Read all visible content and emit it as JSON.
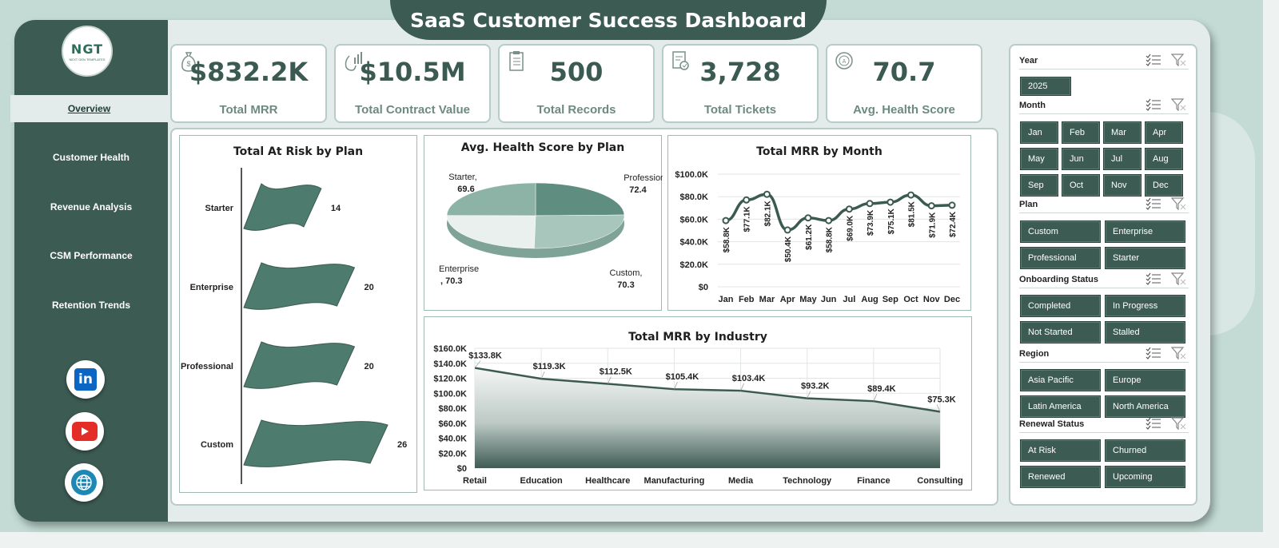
{
  "title": "SaaS Customer Success Dashboard",
  "logo": {
    "text": "NGT",
    "subtitle": "NEXT GEN TEMPLATES"
  },
  "nav": [
    {
      "label": "Overview",
      "active": true
    },
    {
      "label": "Customer Health"
    },
    {
      "label": "Revenue Analysis"
    },
    {
      "label": "CSM Performance"
    },
    {
      "label": "Retention Trends"
    }
  ],
  "social": [
    {
      "name": "linkedin-icon",
      "color": "#0a66c2"
    },
    {
      "name": "youtube-icon",
      "color": "#e52d27"
    },
    {
      "name": "website-globe-icon",
      "color": "#1e88b5"
    }
  ],
  "kpis": [
    {
      "value": "$832.2K",
      "label": "Total MRR",
      "icon": "money-bag-icon"
    },
    {
      "value": "$10.5M",
      "label": "Total Contract Value",
      "icon": "money-chart-icon"
    },
    {
      "value": "500",
      "label": "Total Records",
      "icon": "clipboard-icon"
    },
    {
      "value": "3,728",
      "label": "Total Tickets",
      "icon": "ticket-doc-icon"
    },
    {
      "value": "70.7",
      "label": "Avg. Health Score",
      "icon": "health-score-icon"
    }
  ],
  "colors": {
    "primary": "#3c5b52",
    "accent_light": "#c3dbd4",
    "kpi_text": "#3b5a51",
    "line": "#3b5a51"
  },
  "chart_data": [
    {
      "type": "bar",
      "title": "Total At Risk by Plan",
      "categories": [
        "Starter",
        "Enterprise",
        "Professional",
        "Custom"
      ],
      "values": [
        14,
        20,
        20,
        26
      ]
    },
    {
      "type": "pie",
      "title": "Avg. Health Score by Plan",
      "labels": [
        "Starter",
        "Professional",
        "Custom",
        "Enterprise"
      ],
      "values": [
        69.6,
        72.4,
        70.3,
        70.3
      ],
      "data_labels": [
        {
          "name": "Starter,",
          "value": "69.6"
        },
        {
          "name": "Professional,",
          "value": "72.4"
        },
        {
          "name": "Custom,",
          "value": "70.3"
        },
        {
          "name": "Enterprise",
          "value": ", 70.3"
        }
      ]
    },
    {
      "type": "line",
      "title": "Total MRR by Month",
      "categories": [
        "Jan",
        "Feb",
        "Mar",
        "Apr",
        "May",
        "Jun",
        "Jul",
        "Aug",
        "Sep",
        "Oct",
        "Nov",
        "Dec"
      ],
      "values": [
        58.8,
        77.1,
        82.1,
        50.4,
        61.2,
        58.8,
        69.0,
        73.9,
        75.1,
        81.5,
        71.9,
        72.4
      ],
      "data_labels": [
        "$58.8K",
        "$77.1K",
        "$82.1K",
        "$50.4K",
        "$61.2K",
        "$58.8K",
        "$69.0K",
        "$73.9K",
        "$75.1K",
        "$81.5K",
        "$71.9K",
        "$72.4K"
      ],
      "y_ticks": [
        "$0",
        "$20.0K",
        "$40.0K",
        "$60.0K",
        "$80.0K",
        "$100.0K"
      ],
      "ylim": [
        0,
        100
      ]
    },
    {
      "type": "area",
      "title": "Total MRR by Industry",
      "categories": [
        "Retail",
        "Education",
        "Healthcare",
        "Manufacturing",
        "Media",
        "Technology",
        "Finance",
        "Consulting"
      ],
      "values": [
        133.8,
        119.3,
        112.5,
        105.4,
        103.4,
        93.2,
        89.4,
        75.3
      ],
      "data_labels": [
        "$133.8K",
        "$119.3K",
        "$112.5K",
        "$105.4K",
        "$103.4K",
        "$93.2K",
        "$89.4K",
        "$75.3K"
      ],
      "y_ticks": [
        "$0",
        "$20.0K",
        "$40.0K",
        "$60.0K",
        "$80.0K",
        "$100.0K",
        "$120.0K",
        "$140.0K",
        "$160.0K"
      ],
      "ylim": [
        0,
        160
      ]
    }
  ],
  "slicers": [
    {
      "label": "Year",
      "items": [
        "2025"
      ]
    },
    {
      "label": "Month",
      "items": [
        "Jan",
        "Feb",
        "Mar",
        "Apr",
        "May",
        "Jun",
        "Jul",
        "Aug",
        "Sep",
        "Oct",
        "Nov",
        "Dec"
      ]
    },
    {
      "label": "Plan",
      "items": [
        "Custom",
        "Enterprise",
        "Professional",
        "Starter"
      ]
    },
    {
      "label": "Onboarding Status",
      "items": [
        "Completed",
        "In Progress",
        "Not Started",
        "Stalled"
      ]
    },
    {
      "label": "Region",
      "items": [
        "Asia Pacific",
        "Europe",
        "Latin America",
        "North America"
      ]
    },
    {
      "label": "Renewal Status",
      "items": [
        "At Risk",
        "Churned",
        "Renewed",
        "Upcoming"
      ]
    }
  ]
}
